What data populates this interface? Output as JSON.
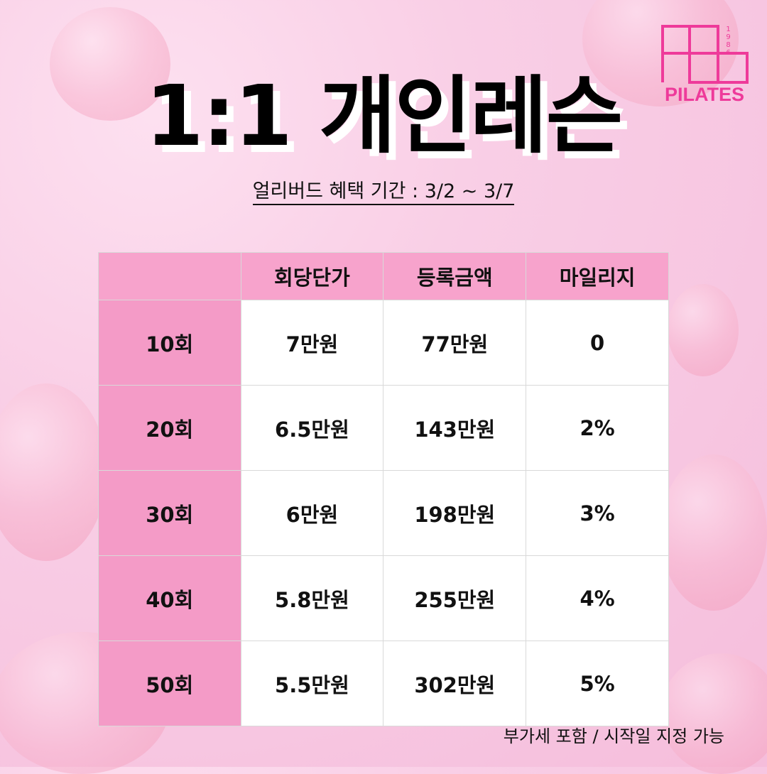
{
  "title": "1:1 개인레슨",
  "subtitle": "얼리버드 혜택 기간 : 3/2 ~ 3/7",
  "logo": {
    "text": "PILATES",
    "year": "1986",
    "color": "#ee3a9a"
  },
  "table": {
    "headers": [
      "",
      "회당단가",
      "등록금액",
      "마일리지"
    ],
    "rows": [
      [
        "10회",
        "7만원",
        "77만원",
        "0"
      ],
      [
        "20회",
        "6.5만원",
        "143만원",
        "2%"
      ],
      [
        "30회",
        "6만원",
        "198만원",
        "3%"
      ],
      [
        "40회",
        "5.8만원",
        "255만원",
        "4%"
      ],
      [
        "50회",
        "5.5만원",
        "302만원",
        "5%"
      ]
    ]
  },
  "note": "부가세 포함 / 시작일 지정 가능",
  "colors": {
    "header": "#f7a3cc",
    "row_header": "#f49bc7",
    "background": "#f8c8e2"
  }
}
